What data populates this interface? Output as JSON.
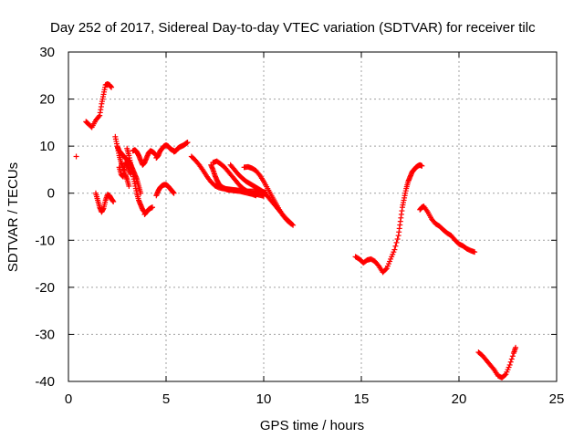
{
  "chart_data": {
    "type": "scatter",
    "title": "Day 252 of 2017, Sidereal Day-to-day VTEC variation (SDTVAR) for receiver tilc",
    "xlabel": "GPS time / hours",
    "ylabel": "SDTVAR / TECUs",
    "xlim": [
      0,
      25
    ],
    "ylim": [
      -40,
      30
    ],
    "xticks": [
      "0",
      "5",
      "10",
      "15",
      "20",
      "25"
    ],
    "yticks": [
      "30",
      "20",
      "10",
      "0",
      "-10",
      "-20",
      "-30",
      "-40"
    ],
    "grid": true,
    "legend": "none",
    "marker": "+",
    "color": "#ff0000",
    "series": [
      {
        "x": [
          0.4
        ],
        "y": [
          7.8
        ]
      },
      {
        "x": [
          0.9,
          1.0,
          1.2,
          1.4,
          1.6,
          1.7,
          1.8,
          1.9,
          2.0,
          2.1,
          2.2
        ],
        "y": [
          15.2,
          14.8,
          14.0,
          15.5,
          16.5,
          19.0,
          21.0,
          23.0,
          23.2,
          23.0,
          22.5
        ]
      },
      {
        "x": [
          1.4,
          1.5,
          1.6,
          1.7,
          1.8,
          1.9,
          2.0,
          2.1,
          2.2,
          2.3
        ],
        "y": [
          0.0,
          -1.5,
          -3.0,
          -4.0,
          -3.2,
          -1.5,
          -0.3,
          -0.5,
          -1.2,
          -1.8
        ]
      },
      {
        "x": [
          2.4,
          2.5,
          2.6,
          2.7,
          2.8,
          2.9,
          3.0,
          3.1
        ],
        "y": [
          12.0,
          10.0,
          8.0,
          6.5,
          5.5,
          4.0,
          3.0,
          1.5
        ]
      },
      {
        "x": [
          2.5,
          2.6,
          2.7,
          2.8,
          2.9,
          3.0,
          3.1,
          3.2,
          3.3,
          3.4,
          3.5,
          3.6,
          3.7
        ],
        "y": [
          10.0,
          9.0,
          8.5,
          8.0,
          7.5,
          7.2,
          6.8,
          6.0,
          5.0,
          4.0,
          3.0,
          1.5,
          0.0
        ]
      },
      {
        "x": [
          2.6,
          2.7,
          2.8,
          2.9,
          3.0,
          3.1,
          3.2
        ],
        "y": [
          5.5,
          4.0,
          3.5,
          6.5,
          6.0,
          5.0,
          4.0
        ]
      },
      {
        "x": [
          3.0,
          3.1,
          3.2,
          3.3,
          3.4,
          3.5,
          3.6,
          3.7,
          3.8,
          3.9
        ],
        "y": [
          9.5,
          8.0,
          6.0,
          4.0,
          2.0,
          0.0,
          -1.5,
          -2.5,
          -3.5,
          -4.0
        ]
      },
      {
        "x": [
          3.3,
          3.4,
          3.5,
          3.6,
          3.7,
          3.8,
          3.9,
          4.0,
          4.1,
          4.2,
          4.3,
          4.4,
          4.5
        ],
        "y": [
          9.0,
          9.2,
          8.8,
          8.0,
          7.0,
          6.0,
          6.5,
          7.5,
          8.5,
          9.0,
          8.8,
          8.5,
          8.0
        ]
      },
      {
        "x": [
          3.9,
          4.0,
          4.1,
          4.2,
          4.3
        ],
        "y": [
          -4.5,
          -4.0,
          -3.5,
          -3.2,
          -3.0
        ]
      },
      {
        "x": [
          4.5,
          4.6,
          4.7,
          4.8,
          4.9,
          5.0,
          5.1,
          5.2,
          5.3,
          5.4
        ],
        "y": [
          7.5,
          8.0,
          9.0,
          9.5,
          10.0,
          10.2,
          10.0,
          9.5,
          9.2,
          9.0
        ]
      },
      {
        "x": [
          5.4,
          5.5,
          5.6,
          5.7,
          5.8,
          5.9,
          6.0,
          6.1
        ],
        "y": [
          8.8,
          9.0,
          9.5,
          9.8,
          10.0,
          10.2,
          10.5,
          10.8
        ]
      },
      {
        "x": [
          4.5,
          4.6,
          4.7,
          4.8,
          4.9,
          5.0,
          5.1,
          5.2,
          5.3,
          5.4
        ],
        "y": [
          -0.5,
          0.5,
          1.2,
          1.6,
          1.8,
          1.8,
          1.5,
          1.0,
          0.5,
          0.0
        ]
      },
      {
        "x": [
          6.3,
          6.5,
          6.7,
          6.9,
          7.1,
          7.3,
          7.5,
          7.7,
          7.9,
          8.1,
          8.3,
          8.5,
          8.7,
          8.9,
          9.1,
          9.3,
          9.5,
          9.7,
          9.9,
          10.1
        ],
        "y": [
          7.8,
          7.0,
          6.0,
          4.8,
          3.5,
          2.4,
          1.6,
          1.2,
          1.0,
          0.9,
          0.8,
          0.7,
          0.6,
          0.5,
          0.4,
          0.4,
          0.4,
          0.3,
          0.3,
          0.2
        ]
      },
      {
        "x": [
          7.3,
          7.4,
          7.5,
          7.6,
          7.7,
          7.8,
          7.9,
          8.0,
          8.1,
          8.2,
          8.4,
          8.6,
          8.8,
          9.0,
          9.2,
          9.4,
          9.6
        ],
        "y": [
          6.0,
          5.0,
          3.8,
          2.8,
          2.0,
          1.5,
          1.2,
          1.0,
          0.8,
          0.7,
          0.6,
          0.5,
          0.4,
          0.2,
          0.0,
          -0.2,
          -0.5
        ]
      },
      {
        "x": [
          7.4,
          7.6,
          7.8,
          8.0,
          8.2,
          8.4,
          8.6,
          8.8,
          9.0,
          9.2,
          9.4,
          9.6,
          9.8,
          10.0
        ],
        "y": [
          6.5,
          6.8,
          6.2,
          5.5,
          4.5,
          3.5,
          2.5,
          1.5,
          0.8,
          0.3,
          0.0,
          -0.2,
          -0.4,
          -0.6
        ]
      },
      {
        "x": [
          8.3,
          8.5,
          8.7,
          8.9,
          9.1,
          9.3,
          9.5,
          9.7,
          9.9,
          10.1,
          10.3,
          10.5,
          10.7,
          10.9,
          11.1,
          11.3,
          11.5
        ],
        "y": [
          6.0,
          5.0,
          4.0,
          3.2,
          2.5,
          2.0,
          1.5,
          1.0,
          0.5,
          -0.2,
          -1.2,
          -2.2,
          -3.2,
          -4.2,
          -5.2,
          -6.0,
          -6.8
        ]
      },
      {
        "x": [
          9.0,
          9.2,
          9.4,
          9.6,
          9.8,
          10.0,
          10.2,
          10.4,
          10.6,
          10.8,
          11.0,
          11.2,
          11.4
        ],
        "y": [
          5.5,
          5.6,
          5.3,
          4.8,
          3.8,
          2.5,
          1.0,
          -0.5,
          -2.0,
          -3.5,
          -4.8,
          -5.8,
          -6.5
        ]
      },
      {
        "x": [
          14.7,
          14.9,
          15.1,
          15.3,
          15.5,
          15.7,
          15.9,
          16.1,
          16.3,
          16.5,
          16.7,
          16.9,
          17.0,
          17.1,
          17.2,
          17.3,
          17.4,
          17.5,
          17.6,
          17.7,
          17.8,
          17.9,
          18.0,
          18.1
        ],
        "y": [
          -13.5,
          -14.0,
          -14.8,
          -14.2,
          -14.0,
          -14.5,
          -15.5,
          -16.8,
          -16.0,
          -14.0,
          -12.0,
          -9.0,
          -6.0,
          -3.0,
          -1.0,
          1.0,
          2.5,
          3.5,
          4.5,
          5.0,
          5.5,
          5.8,
          6.0,
          5.8
        ]
      },
      {
        "x": [
          18.0,
          18.1,
          18.2,
          18.4,
          18.6,
          18.8,
          19.0,
          19.2,
          19.4,
          19.6,
          19.8,
          20.0,
          20.2,
          20.4,
          20.6,
          20.8
        ],
        "y": [
          -3.5,
          -3.0,
          -2.8,
          -4.0,
          -5.5,
          -6.5,
          -7.0,
          -7.8,
          -8.5,
          -9.0,
          -10.0,
          -10.8,
          -11.2,
          -11.8,
          -12.2,
          -12.5
        ]
      },
      {
        "x": [
          21.0,
          21.2,
          21.4,
          21.6,
          21.8,
          22.0,
          22.2,
          22.4,
          22.6,
          22.8,
          22.9
        ],
        "y": [
          -33.8,
          -34.5,
          -35.5,
          -36.5,
          -37.5,
          -38.8,
          -39.2,
          -38.5,
          -36.5,
          -34.0,
          -32.8
        ]
      }
    ]
  }
}
